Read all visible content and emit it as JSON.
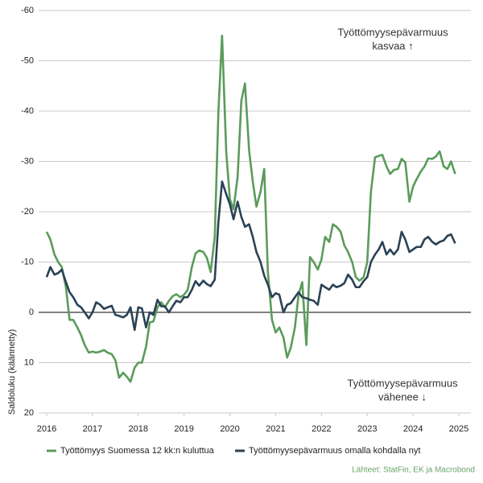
{
  "chart_data": {
    "type": "line",
    "y_label": "Saldoluku (käännetty)",
    "source": "Lähteet: StatFin, EK ja Macrobond",
    "annotations": [
      {
        "lines": [
          "Työttömyysepävarmuus",
          "kasvaa ↑"
        ]
      },
      {
        "lines": [
          "Työttömyysepävarmuus",
          "vähenee ↓"
        ]
      }
    ],
    "x": [
      2016,
      2016.08,
      2016.17,
      2016.25,
      2016.33,
      2016.42,
      2016.5,
      2016.58,
      2016.67,
      2016.75,
      2016.83,
      2016.92,
      2017,
      2017.08,
      2017.17,
      2017.25,
      2017.33,
      2017.42,
      2017.5,
      2017.58,
      2017.67,
      2017.75,
      2017.83,
      2017.92,
      2018,
      2018.08,
      2018.17,
      2018.25,
      2018.33,
      2018.42,
      2018.5,
      2018.58,
      2018.67,
      2018.75,
      2018.83,
      2018.92,
      2019,
      2019.08,
      2019.17,
      2019.25,
      2019.33,
      2019.42,
      2019.5,
      2019.58,
      2019.67,
      2019.75,
      2019.83,
      2019.92,
      2020,
      2020.08,
      2020.17,
      2020.25,
      2020.33,
      2020.42,
      2020.5,
      2020.58,
      2020.67,
      2020.75,
      2020.83,
      2020.92,
      2021,
      2021.08,
      2021.17,
      2021.25,
      2021.33,
      2021.42,
      2021.5,
      2021.58,
      2021.67,
      2021.75,
      2021.83,
      2021.92,
      2022,
      2022.08,
      2022.17,
      2022.25,
      2022.33,
      2022.42,
      2022.5,
      2022.58,
      2022.67,
      2022.75,
      2022.83,
      2022.92,
      2023,
      2023.08,
      2023.17,
      2023.25,
      2023.33,
      2023.42,
      2023.5,
      2023.58,
      2023.67,
      2023.75,
      2023.83,
      2023.92,
      2024,
      2024.08,
      2024.17,
      2024.25,
      2024.33,
      2024.42,
      2024.5,
      2024.58,
      2024.67,
      2024.75,
      2024.83,
      2024.92
    ],
    "series": [
      {
        "name": "Työttömyys Suomessa 12 kk:n kuluttua",
        "color": "#5b9b5b",
        "values": [
          -16,
          -14.5,
          -11.5,
          -10,
          -9,
          -5,
          1.5,
          1.5,
          3,
          4.5,
          6.5,
          8,
          7.8,
          8,
          7.8,
          7.5,
          8,
          8.3,
          9.5,
          13,
          12,
          12.8,
          13.8,
          11,
          10,
          10,
          6.8,
          2,
          1.8,
          -1,
          -2,
          -1,
          -2.3,
          -3.2,
          -3.6,
          -3,
          -3.5,
          -4.5,
          -9,
          -11.7,
          -12.3,
          -12,
          -10.8,
          -8,
          -15,
          -40,
          -55,
          -32,
          -22.5,
          -20.5,
          -27,
          -42,
          -45.5,
          -32.2,
          -26,
          -21,
          -24,
          -28.5,
          -8,
          1.5,
          4,
          3,
          5,
          9,
          7,
          3,
          -3.5,
          -6,
          6.5,
          -11,
          -10,
          -8.5,
          -10.5,
          -15,
          -14,
          -17.5,
          -17,
          -16,
          -13.3,
          -12,
          -10,
          -7,
          -6.3,
          -7,
          -10,
          -24,
          -30.8,
          -31.1,
          -31.3,
          -29,
          -27.5,
          -28.3,
          -28.5,
          -30.5,
          -29.8,
          -22,
          -25,
          -26.5,
          -28,
          -29,
          -30.6,
          -30.5,
          -31,
          -32,
          -29,
          -28.5,
          -30,
          -27.5
        ]
      },
      {
        "name": "Työttömyysepävarmuus omalla kohdalla nyt",
        "color": "#2a4256",
        "values": [
          -7,
          -9,
          -7.5,
          -7.8,
          -8.5,
          -6,
          -4,
          -3,
          -1.5,
          -1,
          0,
          1.2,
          0,
          -2,
          -1.5,
          -0.7,
          -1,
          -1.3,
          0.5,
          0.7,
          1,
          0.5,
          -1,
          3.5,
          -1,
          -0.8,
          3,
          0,
          0.5,
          -2.5,
          -1.2,
          -1.2,
          0,
          -1.2,
          -2.3,
          -2,
          -3,
          -3,
          -4.5,
          -6.2,
          -5.3,
          -6.3,
          -5.6,
          -5.2,
          -6.5,
          -18,
          -26,
          -23.5,
          -21.5,
          -18.5,
          -22,
          -19,
          -17,
          -17.5,
          -15,
          -12,
          -10,
          -7.3,
          -5.5,
          -3,
          -3.8,
          -3.5,
          0,
          -1.5,
          -1.8,
          -3,
          -4,
          -3,
          -2.8,
          -2.5,
          -2.3,
          -1.5,
          -5.5,
          -5,
          -4.5,
          -5.5,
          -5,
          -5.3,
          -5.8,
          -7.5,
          -6.5,
          -5,
          -5,
          -6.2,
          -7,
          -10,
          -11.5,
          -12.5,
          -14,
          -11.5,
          -12.5,
          -11.5,
          -12.5,
          -16,
          -14.5,
          -12,
          -12.5,
          -13,
          -13,
          -14.5,
          -15,
          -14,
          -13.5,
          -14,
          -14.3,
          -15.2,
          -15.5,
          -13.7
        ]
      }
    ],
    "xlim": [
      2016,
      2025
    ],
    "xticks": [
      2016,
      2017,
      2018,
      2019,
      2020,
      2021,
      2022,
      2023,
      2024,
      2025
    ],
    "ylim": [
      20,
      -60
    ],
    "yticks": [
      -60,
      -50,
      -40,
      -30,
      -20,
      -10,
      0,
      10,
      20
    ],
    "grid": true,
    "legend": "bottom"
  }
}
